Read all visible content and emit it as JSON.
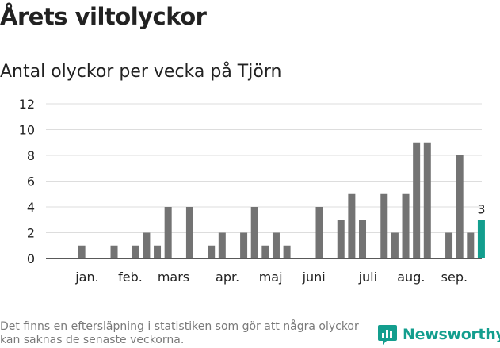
{
  "title": "Årets viltolyckor",
  "subtitle": "Antal olyckor per vecka på Tjörn",
  "footnote": "Det finns en eftersläpning i statistiken som gör att några olyckor kan saknas de senaste veckorna.",
  "brand": {
    "name": "Newsworthy",
    "icon": "newsworthy-logo-icon"
  },
  "colors": {
    "bar": "#737373",
    "highlight": "#139e8e",
    "grid": "#dddddd",
    "axis": "#222222"
  },
  "chart_data": {
    "type": "bar",
    "title": "",
    "xlabel": "",
    "ylabel": "",
    "ylim": [
      0,
      12
    ],
    "yticks": [
      0,
      2,
      4,
      6,
      8,
      10,
      12
    ],
    "grid": true,
    "legend": "none",
    "weeks": [
      1,
      2,
      3,
      4,
      5,
      6,
      7,
      8,
      9,
      10,
      11,
      12,
      13,
      14,
      15,
      16,
      17,
      18,
      19,
      20,
      21,
      22,
      23,
      24,
      25,
      26,
      27,
      28,
      29,
      30,
      31,
      32,
      33,
      34,
      35,
      36,
      37,
      38,
      39
    ],
    "values": [
      0,
      1,
      0,
      0,
      1,
      0,
      1,
      2,
      1,
      4,
      0,
      4,
      0,
      1,
      2,
      0,
      2,
      4,
      1,
      2,
      1,
      0,
      0,
      4,
      0,
      3,
      5,
      3,
      0,
      5,
      2,
      5,
      9,
      9,
      0,
      2,
      8,
      2,
      3
    ],
    "highlight_index": 38,
    "highlight_label": "3",
    "month_labels": [
      {
        "label": "jan.",
        "week": 2.5
      },
      {
        "label": "feb.",
        "week": 6.5
      },
      {
        "label": "mars",
        "week": 10.5
      },
      {
        "label": "apr.",
        "week": 15.5
      },
      {
        "label": "maj",
        "week": 19.5
      },
      {
        "label": "juni",
        "week": 23.5
      },
      {
        "label": "juli",
        "week": 28.5
      },
      {
        "label": "aug.",
        "week": 32.5
      },
      {
        "label": "sep.",
        "week": 36.5
      }
    ]
  }
}
